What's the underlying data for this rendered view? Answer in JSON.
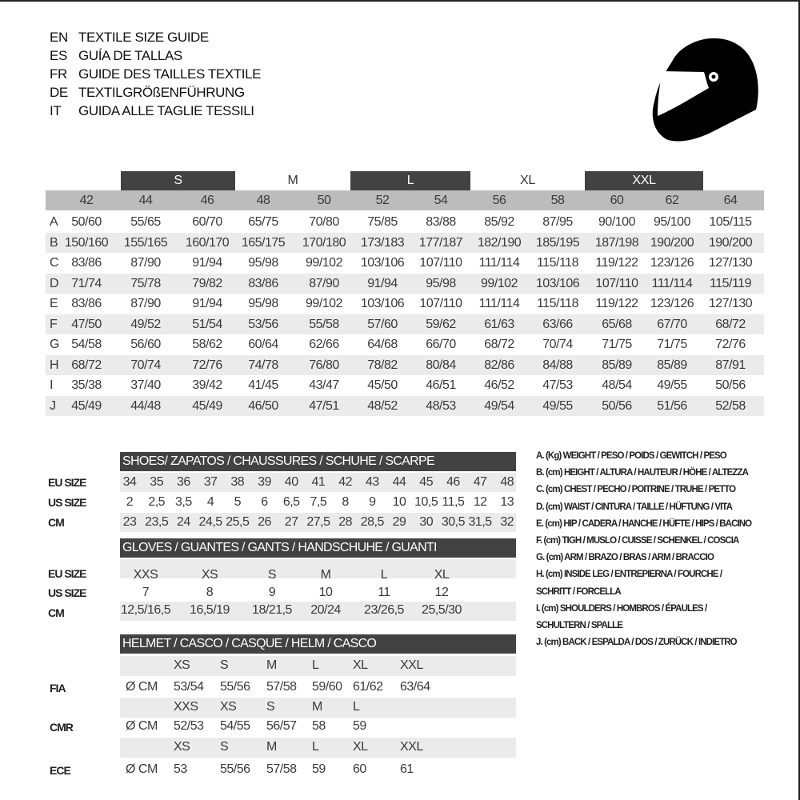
{
  "titles": [
    {
      "code": "EN",
      "text": "TEXTILE SIZE GUIDE"
    },
    {
      "code": "ES",
      "text": "GUÍA DE TALLAS"
    },
    {
      "code": "FR",
      "text": "GUIDE DES TAILLES TEXTILE"
    },
    {
      "code": "DE",
      "text": "TEXTILGRÖßENFÜHRUNG"
    },
    {
      "code": "IT",
      "text": "GUIDA ALLE TAGLIE TESSILI"
    }
  ],
  "icon": "helmet-icon",
  "colors": {
    "dark_band": "#424242",
    "header_gray": "#bcbcbc",
    "row_shade": "#ebebeb"
  },
  "textile": {
    "size_bands": [
      "S",
      "M",
      "L",
      "XL",
      "XXL"
    ],
    "eu_sizes": [
      "42",
      "44",
      "46",
      "48",
      "50",
      "52",
      "54",
      "56",
      "58",
      "60",
      "62",
      "64"
    ],
    "rows": [
      {
        "key": "A",
        "values": [
          "50/60",
          "55/65",
          "60/70",
          "65/75",
          "70/80",
          "75/85",
          "83/88",
          "85/92",
          "87/95",
          "90/100",
          "95/100",
          "105/115"
        ]
      },
      {
        "key": "B",
        "values": [
          "150/160",
          "155/165",
          "160/170",
          "165/175",
          "170/180",
          "173/183",
          "177/187",
          "182/190",
          "185/195",
          "187/198",
          "190/200",
          "190/200"
        ]
      },
      {
        "key": "C",
        "values": [
          "83/86",
          "87/90",
          "91/94",
          "95/98",
          "99/102",
          "103/106",
          "107/110",
          "111/114",
          "115/118",
          "119/122",
          "123/126",
          "127/130"
        ]
      },
      {
        "key": "D",
        "values": [
          "71/74",
          "75/78",
          "79/82",
          "83/86",
          "87/90",
          "91/94",
          "95/98",
          "99/102",
          "103/106",
          "107/110",
          "111/114",
          "115/119"
        ]
      },
      {
        "key": "E",
        "values": [
          "83/86",
          "87/90",
          "91/94",
          "95/98",
          "99/102",
          "103/106",
          "107/110",
          "111/114",
          "115/118",
          "119/122",
          "123/126",
          "127/130"
        ]
      },
      {
        "key": "F",
        "values": [
          "47/50",
          "49/52",
          "51/54",
          "53/56",
          "55/58",
          "57/60",
          "59/62",
          "61/63",
          "63/66",
          "65/68",
          "67/70",
          "68/72"
        ]
      },
      {
        "key": "G",
        "values": [
          "54/58",
          "56/60",
          "58/62",
          "60/64",
          "62/66",
          "64/68",
          "66/70",
          "68/72",
          "70/74",
          "71/75",
          "71/75",
          "72/76"
        ]
      },
      {
        "key": "H",
        "values": [
          "68/72",
          "70/74",
          "72/76",
          "74/78",
          "76/80",
          "78/82",
          "80/84",
          "82/86",
          "84/88",
          "85/89",
          "85/89",
          "87/91"
        ]
      },
      {
        "key": "I",
        "values": [
          "35/38",
          "37/40",
          "39/42",
          "41/45",
          "43/47",
          "45/50",
          "46/51",
          "46/52",
          "47/53",
          "48/54",
          "49/55",
          "50/56"
        ]
      },
      {
        "key": "J",
        "values": [
          "45/49",
          "44/48",
          "45/49",
          "46/50",
          "47/51",
          "48/52",
          "48/53",
          "49/54",
          "49/55",
          "50/56",
          "51/56",
          "52/58"
        ]
      }
    ]
  },
  "shoes": {
    "title": "SHOES/ ZAPATOS / CHAUSSURES / SCHUHE / SCARPE",
    "rows": [
      {
        "label": "EU SIZE",
        "values": [
          "34",
          "35",
          "36",
          "37",
          "38",
          "39",
          "40",
          "41",
          "42",
          "43",
          "44",
          "45",
          "46",
          "47",
          "48"
        ]
      },
      {
        "label": "US SIZE",
        "values": [
          "2",
          "2,5",
          "3,5",
          "4",
          "5",
          "6",
          "6,5",
          "7,5",
          "8",
          "9",
          "10",
          "10,5",
          "11,5",
          "12",
          "13"
        ]
      },
      {
        "label": "CM",
        "values": [
          "23",
          "23,5",
          "24",
          "24,5",
          "25,5",
          "26",
          "27",
          "27,5",
          "28",
          "28,5",
          "29",
          "30",
          "30,5",
          "31,5",
          "32"
        ]
      }
    ]
  },
  "gloves": {
    "title": "GLOVES / GUANTES / GANTS / HANDSCHUHE / GUANTI",
    "rows": [
      {
        "label": "EU SIZE",
        "values": [
          "XXS",
          "XS",
          "S",
          "M",
          "L",
          "XL"
        ]
      },
      {
        "label": "US SIZE",
        "values": [
          "7",
          "8",
          "9",
          "10",
          "11",
          "12"
        ]
      },
      {
        "label": "CM",
        "values": [
          "12,5/16,5",
          "16,5/19",
          "18/21,5",
          "20/24",
          "23/26,5",
          "25,5/30"
        ]
      }
    ]
  },
  "helmet": {
    "title": "HELMET / CASCO / CASQUE / HELM / CASCO",
    "unit": "Ø CM",
    "standards": [
      {
        "label": "FIA",
        "sizes": [
          "XS",
          "S",
          "M",
          "L",
          "XL",
          "XXL"
        ],
        "values": [
          "53/54",
          "55/56",
          "57/58",
          "59/60",
          "61/62",
          "63/64"
        ]
      },
      {
        "label": "CMR",
        "sizes": [
          "XXS",
          "XS",
          "S",
          "M",
          "L"
        ],
        "values": [
          "52/53",
          "54/55",
          "56/57",
          "58",
          "59"
        ]
      },
      {
        "label": "ECE",
        "sizes": [
          "XS",
          "S",
          "M",
          "L",
          "XL",
          "XXL"
        ],
        "values": [
          "53",
          "55/56",
          "57/58",
          "59",
          "60",
          "61"
        ]
      }
    ]
  },
  "legend": [
    "A. (Kg) WEIGHT / PESO / POIDS / GEWITCH / PESO",
    "B. (cm) HEIGHT / ALTURA / HAUTEUR / HÖHE / ALTEZZA",
    "C. (cm) CHEST / PECHO / POITRINE / TRUHE / PETTO",
    "D. (cm) WAIST / CINTURA / TAILLE / HÜFTUNG / VITA",
    "E. (cm) HIP / CADERA / HANCHE / HÜFTE / HIPS /  BACINO",
    "F.  (cm) TIGH / MUSLO / CUISSE / SCHENKEL / COSCIA",
    "G. (cm) ARM  / BRAZO / BRAS / ARM / BRACCIO",
    "H. (cm) INSIDE LEG / ENTREPIERNA / FOURCHE /",
    "SCHRITT / FORCELLA",
    "I.  (cm) SHOULDERS / HOMBROS / ÉPAULES /",
    "SCHULTERN / SPALLE",
    "J. (cm) BACK / ESPALDA / DOS / ZURÜCK / INDIETRO"
  ]
}
